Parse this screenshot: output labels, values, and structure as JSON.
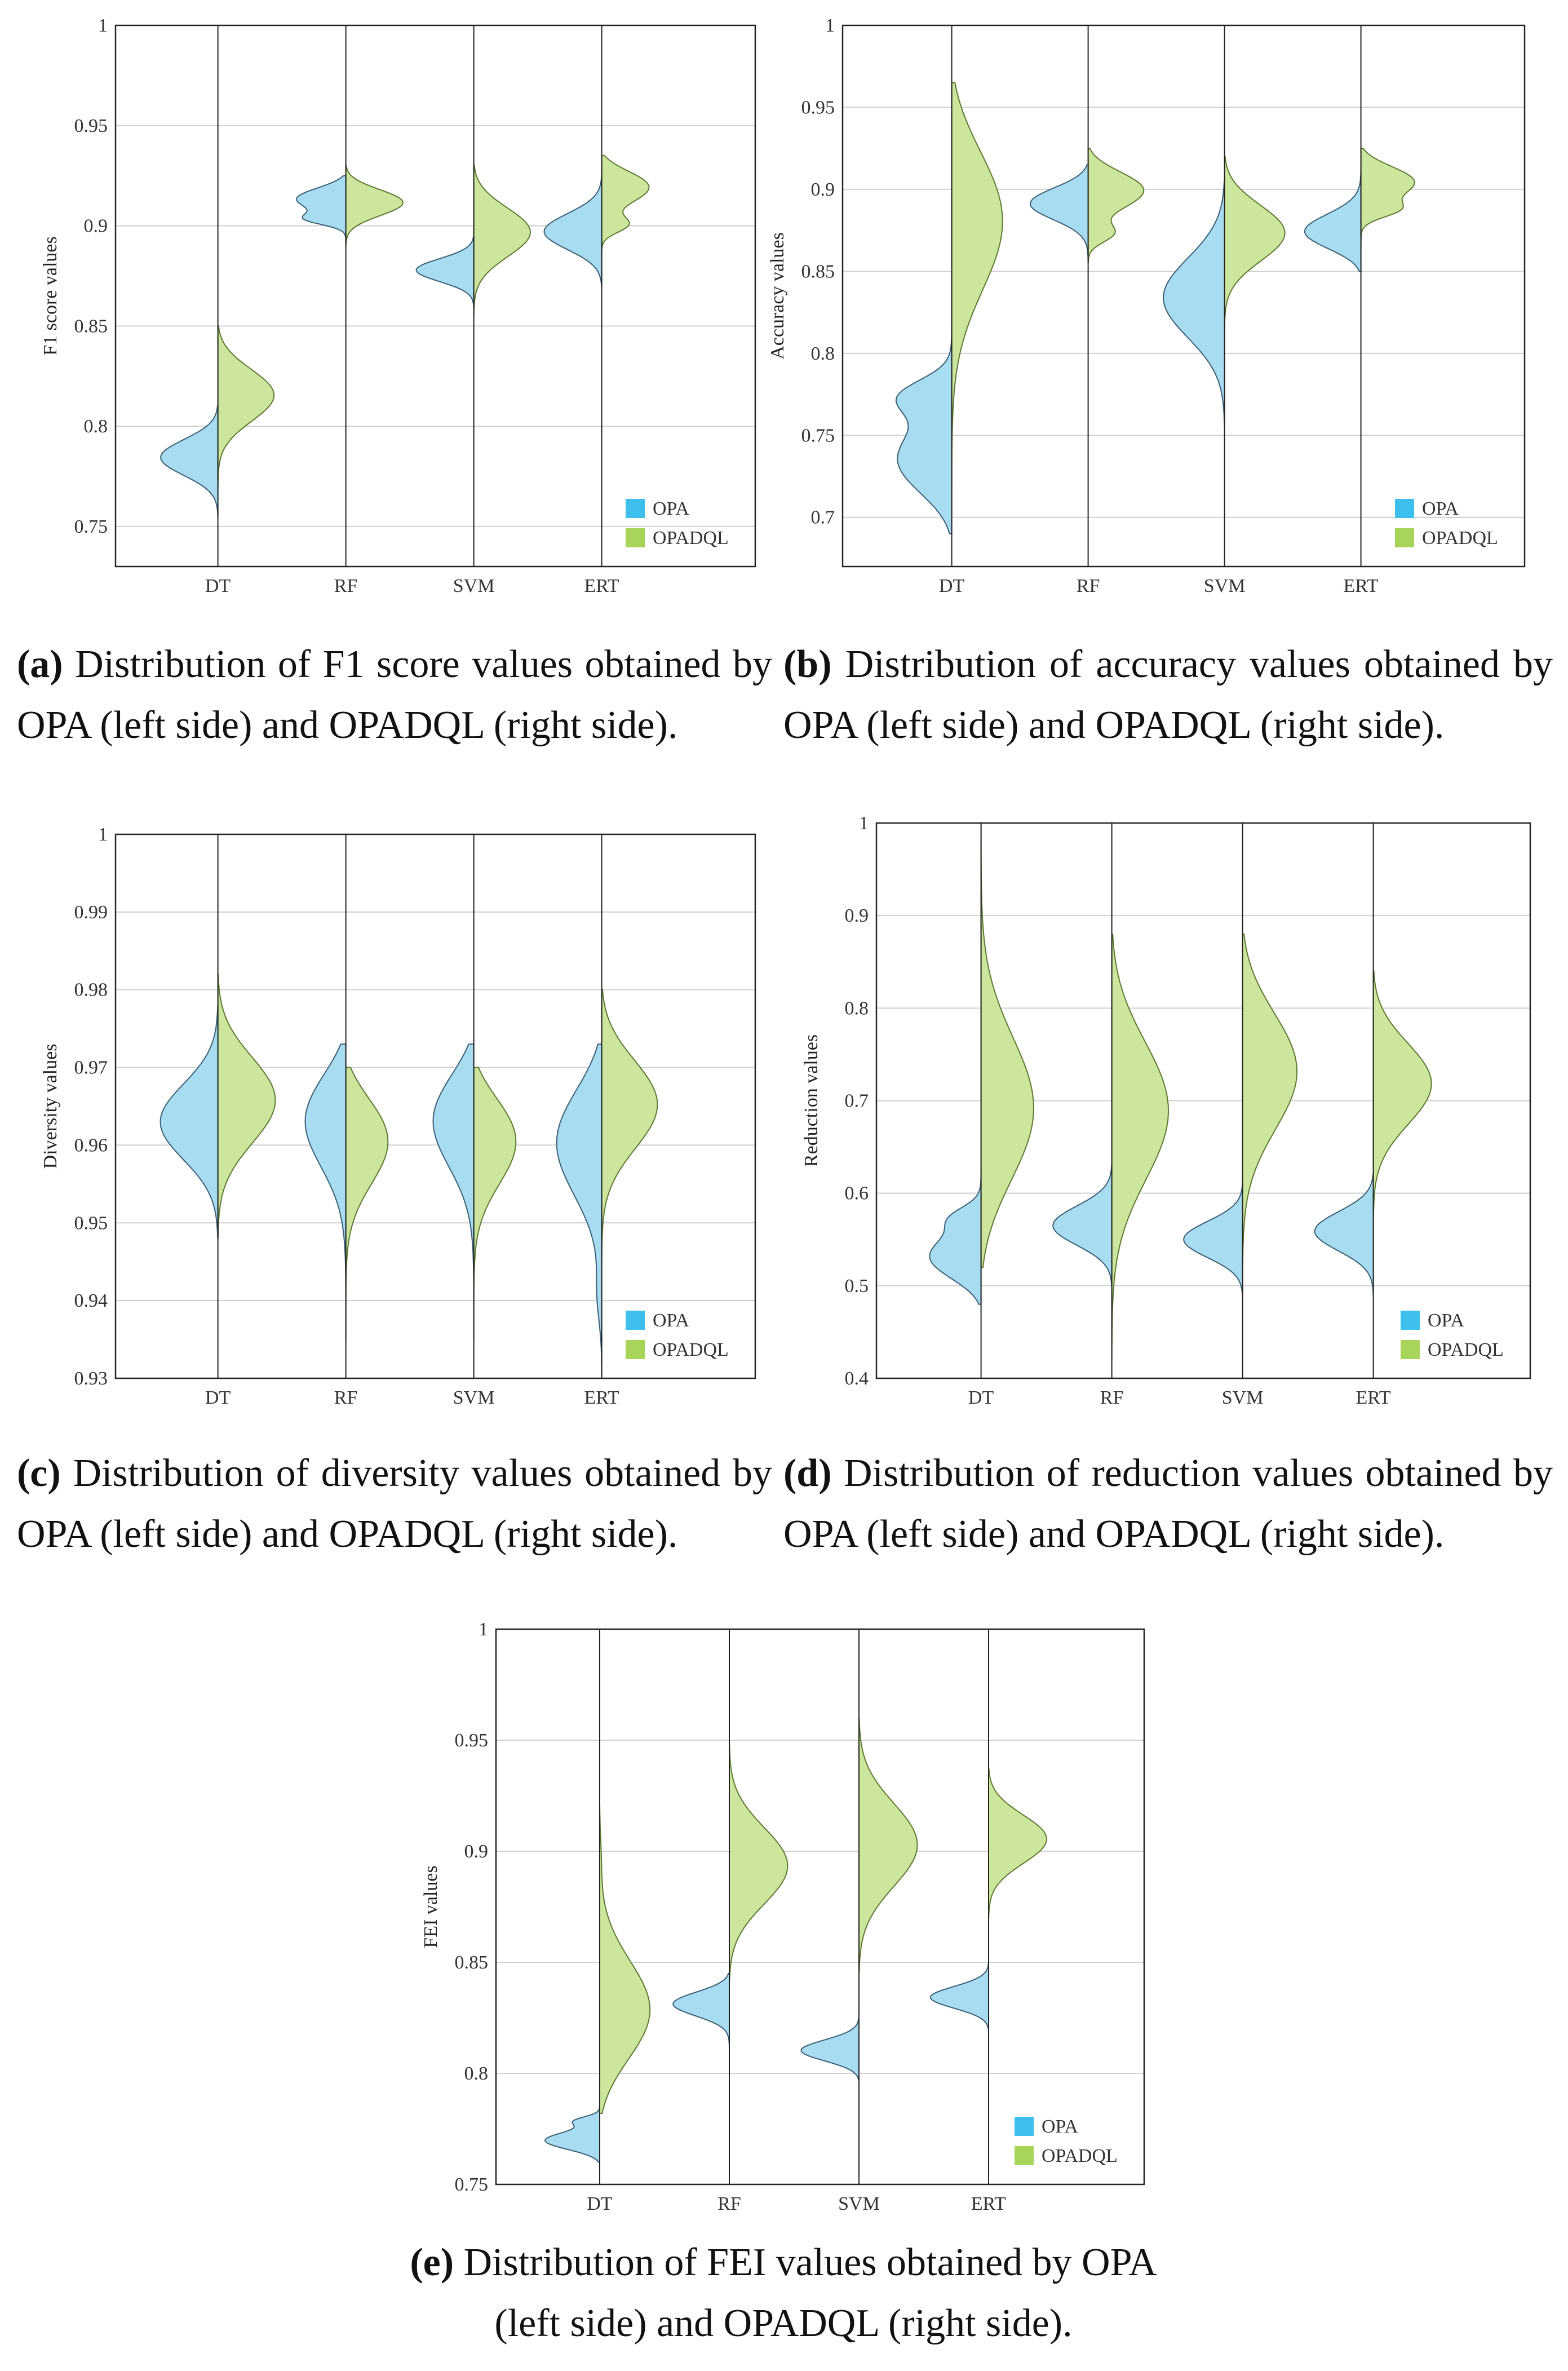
{
  "colors": {
    "opa": "#a8dcf0",
    "opadql": "#cde69e",
    "opa_stroke": "#3a5f78",
    "opadql_stroke": "#5b7a2e",
    "legend_opa": "#3ec0ee",
    "legend_opadql": "#a9d45a",
    "grid": "#cfcfcf",
    "axis": "#222222"
  },
  "legend": {
    "opa": "OPA",
    "opadql": "OPADQL"
  },
  "captions": {
    "a": {
      "tag": "(a)",
      "text": " Distribution of F1 score values obtained by OPA (left side) and OPADQL (right side)."
    },
    "b": {
      "tag": "(b)",
      "text": " Distribution of accuracy values obtained by OPA (left side) and OPADQL (right side)."
    },
    "c": {
      "tag": "(c)",
      "text": " Distribution of diversity values obtained by OPA (left side) and OPADQL (right side)."
    },
    "d": {
      "tag": "(d)",
      "text": " Distribution of reduction values obtained by OPA (left side) and OPADQL (right side)."
    },
    "e": {
      "tag": "(e)",
      "text": " Distribution of FEI values obtained by OPA (left side) and OPADQL (right side)."
    }
  },
  "chart_data": [
    {
      "id": "a",
      "type": "violin",
      "ylabel": "F1 score values",
      "ylim": [
        0.73,
        1.0
      ],
      "yticks": [
        "0.75",
        "0.8",
        "0.85",
        "0.9",
        "0.95",
        "1"
      ],
      "categories": [
        "DT",
        "RF",
        "SVM",
        "ERT"
      ],
      "grid": true,
      "legend_position": "bottom-right",
      "series": [
        {
          "name": "OPA",
          "side": "left",
          "violins": [
            {
              "min": 0.755,
              "max": 0.81,
              "peak": 0.785,
              "extra": []
            },
            {
              "min": 0.89,
              "max": 0.925,
              "peak": 0.915,
              "extra": [
                [
                  0.903,
                  0.6
                ]
              ]
            },
            {
              "min": 0.86,
              "max": 0.895,
              "peak": 0.878,
              "extra": []
            },
            {
              "min": 0.87,
              "max": 0.925,
              "peak": 0.897,
              "extra": [
                [
                  0.833,
                  0.05
                ]
              ]
            }
          ]
        },
        {
          "name": "OPADQL",
          "side": "right",
          "violins": [
            {
              "min": 0.77,
              "max": 0.85,
              "peak": 0.817,
              "extra": []
            },
            {
              "min": 0.89,
              "max": 0.93,
              "peak": 0.912,
              "extra": [
                [
                  0.98,
                  0.04
                ]
              ]
            },
            {
              "min": 0.855,
              "max": 0.93,
              "peak": 0.898,
              "extra": []
            },
            {
              "min": 0.885,
              "max": 0.935,
              "peak": 0.922,
              "extra": [
                [
                  0.9,
                  0.5
                ]
              ]
            }
          ]
        }
      ]
    },
    {
      "id": "b",
      "type": "violin",
      "ylabel": "Accuracy values",
      "ylim": [
        0.67,
        1.0
      ],
      "yticks": [
        "0.7",
        "0.75",
        "0.8",
        "0.85",
        "0.9",
        "0.95",
        "1"
      ],
      "categories": [
        "DT",
        "RF",
        "SVM",
        "ERT"
      ],
      "grid": true,
      "legend_position": "bottom-right",
      "series": [
        {
          "name": "OPA",
          "side": "left",
          "violins": [
            {
              "min": 0.69,
              "max": 0.82,
              "peak": 0.73,
              "extra": [
                [
                  0.775,
                  0.8
                ]
              ]
            },
            {
              "min": 0.855,
              "max": 0.915,
              "peak": 0.893,
              "extra": [
                [
                  0.832,
                  0.06
                ]
              ]
            },
            {
              "min": 0.755,
              "max": 0.905,
              "peak": 0.835,
              "extra": []
            },
            {
              "min": 0.85,
              "max": 0.915,
              "peak": 0.872,
              "extra": [
                [
                  0.8,
                  0.05
                ]
              ]
            }
          ]
        },
        {
          "name": "OPADQL",
          "side": "right",
          "violins": [
            {
              "min": 0.7,
              "max": 0.965,
              "peak": 0.895,
              "extra": []
            },
            {
              "min": 0.855,
              "max": 0.925,
              "peak": 0.902,
              "extra": [
                [
                  0.872,
                  0.5
                ]
              ]
            },
            {
              "min": 0.815,
              "max": 0.92,
              "peak": 0.875,
              "extra": []
            },
            {
              "min": 0.865,
              "max": 0.925,
              "peak": 0.907,
              "extra": [
                [
                  0.887,
                  0.5
                ]
              ]
            }
          ]
        }
      ]
    },
    {
      "id": "c",
      "type": "violin",
      "ylabel": "Diversity values",
      "ylim": [
        0.93,
        1.0
      ],
      "yticks": [
        "0.93",
        "0.94",
        "0.95",
        "0.96",
        "0.97",
        "0.98",
        "0.99",
        "1"
      ],
      "categories": [
        "DT",
        "RF",
        "SVM",
        "ERT"
      ],
      "grid": true,
      "legend_position": "bottom-right",
      "series": [
        {
          "name": "OPA",
          "side": "left",
          "violins": [
            {
              "min": 0.948,
              "max": 0.978,
              "peak": 0.963,
              "extra": []
            },
            {
              "min": 0.935,
              "max": 0.973,
              "peak": 0.966,
              "extra": []
            },
            {
              "min": 0.935,
              "max": 0.973,
              "peak": 0.966,
              "extra": []
            },
            {
              "min": 0.93,
              "max": 0.973,
              "peak": 0.963,
              "extra": [
                [
                  0.94,
                  0.1
                ]
              ]
            }
          ]
        },
        {
          "name": "OPADQL",
          "side": "right",
          "violins": [
            {
              "min": 0.948,
              "max": 0.982,
              "peak": 0.966,
              "extra": []
            },
            {
              "min": 0.935,
              "max": 0.97,
              "peak": 0.963,
              "extra": []
            },
            {
              "min": 0.935,
              "max": 0.97,
              "peak": 0.963,
              "extra": []
            },
            {
              "min": 0.945,
              "max": 0.98,
              "peak": 0.966,
              "extra": []
            }
          ]
        }
      ]
    },
    {
      "id": "d",
      "type": "violin",
      "ylabel": "Reduction values",
      "ylim": [
        0.4,
        1.0
      ],
      "yticks": [
        "0.4",
        "0.5",
        "0.6",
        "0.7",
        "0.8",
        "0.9",
        "1"
      ],
      "categories": [
        "DT",
        "RF",
        "SVM",
        "ERT"
      ],
      "grid": true,
      "legend_position": "bottom-right",
      "series": [
        {
          "name": "OPA",
          "side": "left",
          "violins": [
            {
              "min": 0.48,
              "max": 0.63,
              "peak": 0.525,
              "extra": [
                [
                  0.575,
                  0.4
                ]
              ]
            },
            {
              "min": 0.5,
              "max": 0.63,
              "peak": 0.565,
              "extra": []
            },
            {
              "min": 0.49,
              "max": 0.61,
              "peak": 0.55,
              "extra": []
            },
            {
              "min": 0.49,
              "max": 0.62,
              "peak": 0.56,
              "extra": []
            }
          ]
        },
        {
          "name": "OPADQL",
          "side": "right",
          "violins": [
            {
              "min": 0.52,
              "max": 1.0,
              "peak": 0.672,
              "extra": []
            },
            {
              "min": 0.42,
              "max": 0.88,
              "peak": 0.7,
              "extra": []
            },
            {
              "min": 0.49,
              "max": 0.88,
              "peak": 0.745,
              "extra": []
            },
            {
              "min": 0.57,
              "max": 0.84,
              "peak": 0.722,
              "extra": []
            }
          ]
        }
      ]
    },
    {
      "id": "e",
      "type": "violin",
      "ylabel": "FEI values",
      "ylim": [
        0.75,
        1.0
      ],
      "yticks": [
        "0.75",
        "0.8",
        "0.85",
        "0.9",
        "0.95",
        "1"
      ],
      "categories": [
        "DT",
        "RF",
        "SVM",
        "ERT"
      ],
      "grid": true,
      "legend_position": "bottom-right",
      "series": [
        {
          "name": "OPA",
          "side": "left",
          "violins": [
            {
              "min": 0.76,
              "max": 0.785,
              "peak": 0.769,
              "extra": [
                [
                  0.779,
                  0.5
                ]
              ]
            },
            {
              "min": 0.812,
              "max": 0.845,
              "peak": 0.832,
              "extra": []
            },
            {
              "min": 0.797,
              "max": 0.826,
              "peak": 0.81,
              "extra": []
            },
            {
              "min": 0.82,
              "max": 0.85,
              "peak": 0.834,
              "extra": []
            }
          ]
        },
        {
          "name": "OPADQL",
          "side": "right",
          "violins": [
            {
              "min": 0.782,
              "max": 0.92,
              "peak": 0.822,
              "extra": [
                [
                  0.9,
                  0.04
                ]
              ]
            },
            {
              "min": 0.842,
              "max": 0.948,
              "peak": 0.893,
              "extra": []
            },
            {
              "min": 0.845,
              "max": 0.96,
              "peak": 0.903,
              "extra": []
            },
            {
              "min": 0.87,
              "max": 0.937,
              "peak": 0.906,
              "extra": []
            }
          ]
        }
      ]
    }
  ]
}
